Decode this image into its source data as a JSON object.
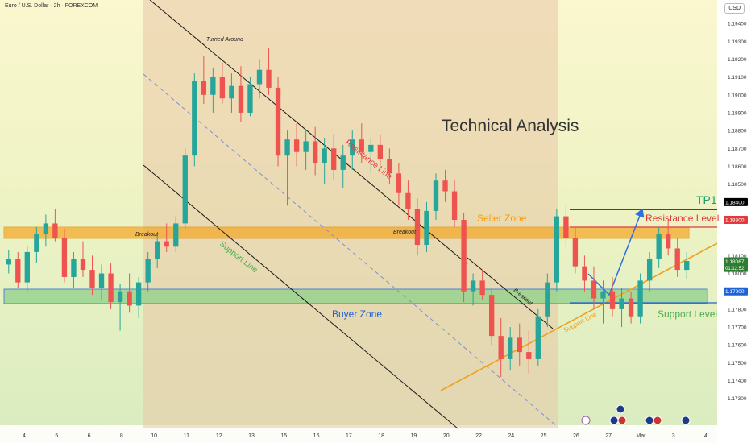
{
  "header": {
    "symbol": "Euro / U.S. Dollar · 2h · FOREXCOM",
    "currency": "USD"
  },
  "chart_data": {
    "type": "candlestick",
    "symbol": "Euro / U.S. Dollar",
    "timeframe": "2h",
    "broker": "FOREXCOM",
    "ylim": [
      1.1715,
      1.1945
    ],
    "y_ticks": [
      "1.19400",
      "1.19300",
      "1.19200",
      "1.19100",
      "1.19000",
      "1.18900",
      "1.18800",
      "1.18700",
      "1.18600",
      "1.18500",
      "1.18300",
      "1.18100",
      "1.18000",
      "1.17800",
      "1.17700",
      "1.17600",
      "1.17500",
      "1.17400",
      "1.17300"
    ],
    "x_ticks": [
      "4",
      "5",
      "6",
      "8",
      "10",
      "11",
      "12",
      "13",
      "15",
      "16",
      "17",
      "18",
      "19",
      "20",
      "22",
      "24",
      "25",
      "26",
      "27",
      "Mar",
      "3",
      "4"
    ],
    "price_tags": [
      {
        "label": "1.18400",
        "price": 1.184,
        "color": "#000000"
      },
      {
        "label": "1.18300",
        "price": 1.183,
        "color": "#e03a3a"
      },
      {
        "label": "1.18067",
        "price": 1.18067,
        "color": "#2e7d32",
        "sub": "01:12:52"
      },
      {
        "label": "1.17900",
        "price": 1.179,
        "color": "#1e63d6"
      }
    ],
    "title_text": "Technical Analysis",
    "zones": [
      {
        "name": "Seller Zone",
        "price_low": 1.1825,
        "price_high": 1.1831,
        "color": "#f5a623"
      },
      {
        "name": "Buyer Zone",
        "price_low": 1.179,
        "price_high": 1.1798,
        "color": "#3a7bd5"
      }
    ],
    "annotations": {
      "turned_around": "Turned Around",
      "resistance_line": "Resistance Line",
      "support_line_channel": "Support Line",
      "support_line_trend": "Support Line",
      "breakout_left": "Breakout",
      "breakout_mid": "Breakout",
      "breakout_right": "Breakout",
      "seller_zone": "Seller Zone",
      "buyer_zone": "Buyer Zone",
      "tp1": "TP1",
      "resistance_level": "Resistance Level",
      "support_level": "Support Level"
    },
    "colors": {
      "up": "#26a69a",
      "down": "#ef5350",
      "tp1": "#1a9e6e",
      "resistance": "#e03a3a",
      "support": "#4caf50",
      "buyer": "#1e63d6",
      "seller": "#f59e0b"
    },
    "candles": [
      {
        "o": 1.1805,
        "h": 1.1813,
        "l": 1.18,
        "c": 1.1808
      },
      {
        "o": 1.1808,
        "h": 1.1812,
        "l": 1.1792,
        "c": 1.1795
      },
      {
        "o": 1.1795,
        "h": 1.1815,
        "l": 1.179,
        "c": 1.1812
      },
      {
        "o": 1.1812,
        "h": 1.1826,
        "l": 1.1806,
        "c": 1.1822
      },
      {
        "o": 1.1822,
        "h": 1.1833,
        "l": 1.1815,
        "c": 1.1828
      },
      {
        "o": 1.1828,
        "h": 1.1836,
        "l": 1.1818,
        "c": 1.182
      },
      {
        "o": 1.182,
        "h": 1.1825,
        "l": 1.1795,
        "c": 1.1798
      },
      {
        "o": 1.1798,
        "h": 1.1812,
        "l": 1.1792,
        "c": 1.1808
      },
      {
        "o": 1.1808,
        "h": 1.1818,
        "l": 1.1798,
        "c": 1.1802
      },
      {
        "o": 1.1802,
        "h": 1.181,
        "l": 1.1788,
        "c": 1.1792
      },
      {
        "o": 1.1792,
        "h": 1.1805,
        "l": 1.1785,
        "c": 1.18
      },
      {
        "o": 1.18,
        "h": 1.1806,
        "l": 1.178,
        "c": 1.1784
      },
      {
        "o": 1.1784,
        "h": 1.1794,
        "l": 1.1768,
        "c": 1.179
      },
      {
        "o": 1.179,
        "h": 1.18,
        "l": 1.1778,
        "c": 1.1782
      },
      {
        "o": 1.1782,
        "h": 1.1798,
        "l": 1.1775,
        "c": 1.1795
      },
      {
        "o": 1.1795,
        "h": 1.1812,
        "l": 1.179,
        "c": 1.1808
      },
      {
        "o": 1.1808,
        "h": 1.1822,
        "l": 1.1803,
        "c": 1.1818
      },
      {
        "o": 1.1818,
        "h": 1.1828,
        "l": 1.1812,
        "c": 1.1815
      },
      {
        "o": 1.1815,
        "h": 1.1832,
        "l": 1.1812,
        "c": 1.1828
      },
      {
        "o": 1.1828,
        "h": 1.187,
        "l": 1.1825,
        "c": 1.1866
      },
      {
        "o": 1.1866,
        "h": 1.1912,
        "l": 1.186,
        "c": 1.1908
      },
      {
        "o": 1.1908,
        "h": 1.1922,
        "l": 1.1895,
        "c": 1.19
      },
      {
        "o": 1.19,
        "h": 1.1915,
        "l": 1.189,
        "c": 1.191
      },
      {
        "o": 1.191,
        "h": 1.1918,
        "l": 1.1895,
        "c": 1.1898
      },
      {
        "o": 1.1898,
        "h": 1.1912,
        "l": 1.189,
        "c": 1.1905
      },
      {
        "o": 1.1905,
        "h": 1.1916,
        "l": 1.1885,
        "c": 1.189
      },
      {
        "o": 1.189,
        "h": 1.191,
        "l": 1.1888,
        "c": 1.1906
      },
      {
        "o": 1.1906,
        "h": 1.192,
        "l": 1.1898,
        "c": 1.1914
      },
      {
        "o": 1.1914,
        "h": 1.1926,
        "l": 1.19,
        "c": 1.1904
      },
      {
        "o": 1.1904,
        "h": 1.191,
        "l": 1.186,
        "c": 1.1866
      },
      {
        "o": 1.1866,
        "h": 1.188,
        "l": 1.1838,
        "c": 1.1875
      },
      {
        "o": 1.1875,
        "h": 1.1884,
        "l": 1.186,
        "c": 1.1868
      },
      {
        "o": 1.1868,
        "h": 1.188,
        "l": 1.1858,
        "c": 1.1874
      },
      {
        "o": 1.1874,
        "h": 1.1882,
        "l": 1.1855,
        "c": 1.1862
      },
      {
        "o": 1.1862,
        "h": 1.1876,
        "l": 1.185,
        "c": 1.187
      },
      {
        "o": 1.187,
        "h": 1.1878,
        "l": 1.1852,
        "c": 1.1858
      },
      {
        "o": 1.1858,
        "h": 1.1872,
        "l": 1.1848,
        "c": 1.1866
      },
      {
        "o": 1.1866,
        "h": 1.188,
        "l": 1.1858,
        "c": 1.1875
      },
      {
        "o": 1.1875,
        "h": 1.1884,
        "l": 1.1862,
        "c": 1.1868
      },
      {
        "o": 1.1868,
        "h": 1.1876,
        "l": 1.1856,
        "c": 1.1872
      },
      {
        "o": 1.1872,
        "h": 1.1878,
        "l": 1.186,
        "c": 1.1864
      },
      {
        "o": 1.1864,
        "h": 1.187,
        "l": 1.185,
        "c": 1.1856
      },
      {
        "o": 1.1856,
        "h": 1.1862,
        "l": 1.1838,
        "c": 1.1845
      },
      {
        "o": 1.1845,
        "h": 1.1852,
        "l": 1.183,
        "c": 1.1836
      },
      {
        "o": 1.1836,
        "h": 1.1842,
        "l": 1.181,
        "c": 1.1816
      },
      {
        "o": 1.1816,
        "h": 1.184,
        "l": 1.1812,
        "c": 1.1835
      },
      {
        "o": 1.1835,
        "h": 1.1856,
        "l": 1.183,
        "c": 1.1852
      },
      {
        "o": 1.1852,
        "h": 1.1858,
        "l": 1.184,
        "c": 1.1846
      },
      {
        "o": 1.1846,
        "h": 1.1852,
        "l": 1.1826,
        "c": 1.183
      },
      {
        "o": 1.183,
        "h": 1.1834,
        "l": 1.1784,
        "c": 1.179
      },
      {
        "o": 1.179,
        "h": 1.18,
        "l": 1.1782,
        "c": 1.1796
      },
      {
        "o": 1.1796,
        "h": 1.1802,
        "l": 1.1785,
        "c": 1.1788
      },
      {
        "o": 1.1788,
        "h": 1.1792,
        "l": 1.176,
        "c": 1.1765
      },
      {
        "o": 1.1765,
        "h": 1.1775,
        "l": 1.1742,
        "c": 1.1752
      },
      {
        "o": 1.1752,
        "h": 1.177,
        "l": 1.1746,
        "c": 1.1764
      },
      {
        "o": 1.1764,
        "h": 1.1772,
        "l": 1.1748,
        "c": 1.1756
      },
      {
        "o": 1.1756,
        "h": 1.1768,
        "l": 1.1744,
        "c": 1.1752
      },
      {
        "o": 1.1752,
        "h": 1.178,
        "l": 1.1748,
        "c": 1.1776
      },
      {
        "o": 1.1776,
        "h": 1.18,
        "l": 1.177,
        "c": 1.1795
      },
      {
        "o": 1.1795,
        "h": 1.1836,
        "l": 1.179,
        "c": 1.1832
      },
      {
        "o": 1.1832,
        "h": 1.1838,
        "l": 1.1815,
        "c": 1.182
      },
      {
        "o": 1.182,
        "h": 1.1826,
        "l": 1.18,
        "c": 1.1804
      },
      {
        "o": 1.1804,
        "h": 1.181,
        "l": 1.179,
        "c": 1.1796
      },
      {
        "o": 1.1796,
        "h": 1.1804,
        "l": 1.178,
        "c": 1.1786
      },
      {
        "o": 1.1786,
        "h": 1.1796,
        "l": 1.1772,
        "c": 1.179
      },
      {
        "o": 1.179,
        "h": 1.1798,
        "l": 1.1776,
        "c": 1.178
      },
      {
        "o": 1.178,
        "h": 1.1792,
        "l": 1.177,
        "c": 1.1786
      },
      {
        "o": 1.1786,
        "h": 1.179,
        "l": 1.1772,
        "c": 1.1776
      },
      {
        "o": 1.1776,
        "h": 1.18,
        "l": 1.1772,
        "c": 1.1796
      },
      {
        "o": 1.1796,
        "h": 1.1812,
        "l": 1.179,
        "c": 1.1808
      },
      {
        "o": 1.1808,
        "h": 1.1826,
        "l": 1.1803,
        "c": 1.1822
      },
      {
        "o": 1.1822,
        "h": 1.183,
        "l": 1.181,
        "c": 1.1814
      },
      {
        "o": 1.1814,
        "h": 1.182,
        "l": 1.1798,
        "c": 1.1802
      },
      {
        "o": 1.1802,
        "h": 1.1812,
        "l": 1.1797,
        "c": 1.1807
      }
    ]
  }
}
